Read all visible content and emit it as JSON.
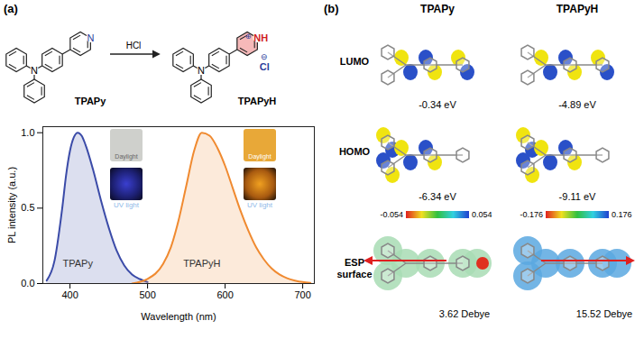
{
  "panel_a": {
    "label": "(a)",
    "scheme": {
      "reactant": "TPAPy",
      "product": "TPAPyH",
      "reagent": "HCl",
      "amine_n": "N",
      "pyridine_n": "N",
      "pyridinium_nh": "NH",
      "charge_plus": "⊕",
      "counterion": "Cl",
      "charge_minus": "⊖"
    },
    "insets": [
      {
        "series": "TPAPy",
        "daylight": "Daylight",
        "uv": "UV light"
      },
      {
        "series": "TPAPyH",
        "daylight": "Daylight",
        "uv": "UV light"
      }
    ]
  },
  "chart_data": {
    "type": "line",
    "x_label": "Wavelength (nm)",
    "y_label": "PL intensity (a.u.)",
    "xlim": [
      365,
      715
    ],
    "xticks": [
      400,
      500,
      600,
      700
    ],
    "ylim": [
      0,
      1.04
    ],
    "yticks": [
      {
        "value": 0,
        "label": "0.0"
      },
      {
        "value": 0.5,
        "label": "0.5"
      },
      {
        "value": 1,
        "label": "1.0"
      }
    ],
    "series": [
      {
        "name": "TPAPy",
        "color": "#3b4ba8",
        "x": [
          370,
          380,
          390,
          395,
          400,
          405,
          410,
          415,
          420,
          430,
          440,
          450,
          460,
          470,
          480,
          490,
          500
        ],
        "values": [
          0.02,
          0.15,
          0.5,
          0.72,
          0.88,
          0.97,
          1.0,
          0.98,
          0.92,
          0.75,
          0.55,
          0.37,
          0.22,
          0.12,
          0.06,
          0.03,
          0.01
        ]
      },
      {
        "name": "TPAPyH",
        "color": "#f08a30",
        "x": [
          480,
          500,
          520,
          530,
          540,
          550,
          560,
          570,
          580,
          590,
          600,
          610,
          620,
          630,
          640,
          650,
          660,
          670,
          680,
          690,
          700,
          710
        ],
        "values": [
          0.0,
          0.03,
          0.13,
          0.24,
          0.42,
          0.65,
          0.88,
          1.0,
          0.98,
          0.9,
          0.78,
          0.63,
          0.48,
          0.35,
          0.24,
          0.16,
          0.1,
          0.06,
          0.035,
          0.02,
          0.01,
          0.005
        ]
      }
    ]
  },
  "panel_b": {
    "label": "(b)",
    "rows": [
      "LUMO",
      "HOMO",
      "ESP surface"
    ],
    "molecules": [
      {
        "name": "TPAPy",
        "lumo": "-0.34 eV",
        "homo": "-6.34 eV",
        "esp_colorbar_range": [
          -0.054,
          0.054
        ],
        "dipole": "3.62 Debye"
      },
      {
        "name": "TPAPyH",
        "lumo": "-4.89 eV",
        "homo": "-9.11 eV",
        "esp_colorbar_range": [
          -0.176,
          0.176
        ],
        "dipole": "15.52 Debye"
      }
    ]
  }
}
